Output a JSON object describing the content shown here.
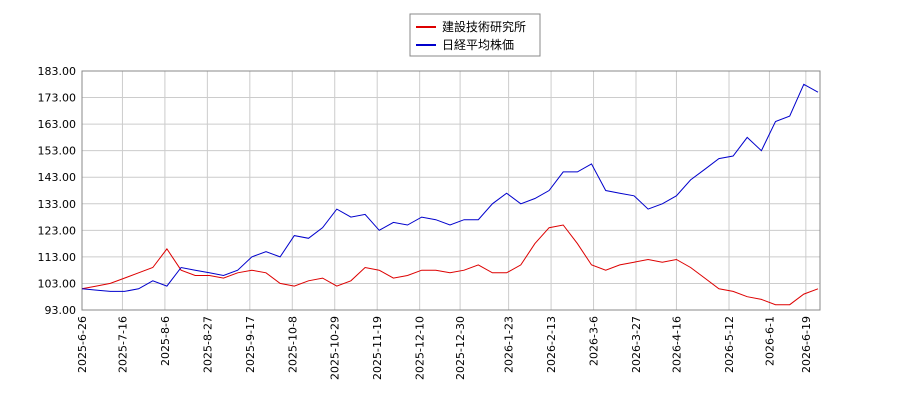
{
  "chart_data": {
    "type": "line",
    "x": [
      "2025-6-26",
      "2025-7-3",
      "2025-7-10",
      "2025-7-17",
      "2025-7-24",
      "2025-7-31",
      "2025-8-7",
      "2025-8-14",
      "2025-8-21",
      "2025-8-28",
      "2025-9-4",
      "2025-9-11",
      "2025-9-18",
      "2025-9-25",
      "2025-10-2",
      "2025-10-9",
      "2025-10-16",
      "2025-10-23",
      "2025-10-30",
      "2025-11-6",
      "2025-11-13",
      "2025-11-20",
      "2025-11-27",
      "2025-12-4",
      "2025-12-11",
      "2025-12-18",
      "2025-12-25",
      "2026-1-1",
      "2026-1-8",
      "2026-1-15",
      "2026-1-22",
      "2026-1-29",
      "2026-2-5",
      "2026-2-12",
      "2026-2-19",
      "2026-2-26",
      "2026-3-5",
      "2026-3-12",
      "2026-3-19",
      "2026-3-26",
      "2026-4-2",
      "2026-4-9",
      "2026-4-16",
      "2026-4-23",
      "2026-4-30",
      "2026-5-7",
      "2026-5-14",
      "2026-5-21",
      "2026-5-28",
      "2026-6-4",
      "2026-6-11",
      "2026-6-18",
      "2026-6-25"
    ],
    "series": [
      {
        "name": "建設技術研究所",
        "color": "#dd0000",
        "values": [
          101,
          102,
          103,
          105,
          107,
          109,
          116,
          108,
          106,
          106,
          105,
          107,
          108,
          107,
          103,
          102,
          104,
          105,
          102,
          104,
          109,
          108,
          105,
          106,
          108,
          108,
          107,
          108,
          110,
          107,
          107,
          110,
          118,
          124,
          125,
          118,
          110,
          108,
          110,
          111,
          112,
          111,
          112,
          109,
          105,
          101,
          100,
          98,
          97,
          95,
          95,
          99,
          101
        ]
      },
      {
        "name": "日経平均株価",
        "color": "#0000cc",
        "values": [
          101,
          100.5,
          100,
          100,
          101,
          104,
          102,
          109,
          108,
          107,
          106,
          108,
          113,
          115,
          113,
          121,
          120,
          124,
          131,
          128,
          129,
          123,
          126,
          125,
          128,
          127,
          125,
          127,
          127,
          133,
          137,
          133,
          135,
          138,
          145,
          145,
          148,
          138,
          137,
          136,
          131,
          133,
          136,
          142,
          146,
          150,
          151,
          158,
          153,
          164,
          166,
          178,
          175
        ]
      }
    ],
    "xlim": [
      "2025-6-26",
      "2026-6-26"
    ],
    "xticks": [
      "2025-6-26",
      "2025-7-16",
      "2025-8-6",
      "2025-8-27",
      "2025-9-17",
      "2025-10-8",
      "2025-10-29",
      "2025-11-19",
      "2025-12-10",
      "2025-12-30",
      "2026-1-23",
      "2026-2-13",
      "2026-3-6",
      "2026-3-27",
      "2026-4-16",
      "2026-5-12",
      "2026-6-1",
      "2026-6-19"
    ],
    "ylim": [
      93,
      183
    ],
    "yticks": [
      {
        "value": 93,
        "label": "93.00"
      },
      {
        "value": 103,
        "label": "103.00"
      },
      {
        "value": 113,
        "label": "113.00"
      },
      {
        "value": 123,
        "label": "123.00"
      },
      {
        "value": 133,
        "label": "133.00"
      },
      {
        "value": 143,
        "label": "143.00"
      },
      {
        "value": 153,
        "label": "153.00"
      },
      {
        "value": 163,
        "label": "163.00"
      },
      {
        "value": 173,
        "label": "173.00"
      },
      {
        "value": 183,
        "label": "183.00"
      }
    ],
    "grid": true,
    "legend": "top"
  }
}
